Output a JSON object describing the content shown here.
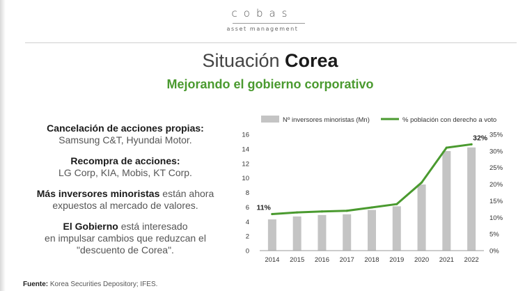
{
  "logo": {
    "name": "cobas",
    "tagline": "asset management"
  },
  "title": {
    "regular": "Situación",
    "bold": "Corea"
  },
  "subtitle": "Mejorando el gobierno corporativo",
  "points": [
    {
      "heading": "Cancelación de acciones propias:",
      "rest": "",
      "detail": "Samsung C&T, Hyundai Motor."
    },
    {
      "heading": "Recompra de acciones:",
      "rest": "",
      "detail": "LG Corp, KIA, Mobis, KT Corp."
    },
    {
      "heading": "Más inversores minoristas",
      "rest": " están ahora",
      "detail": "expuestos al mercado de valores."
    },
    {
      "heading": "El Gobierno",
      "rest": " está interesado",
      "detail": "en impulsar cambios que reduzcan el \"descuento de Corea\"."
    }
  ],
  "source": {
    "label": "Fuente:",
    "text": " Korea Securities Depository; IFES."
  },
  "chart_data": {
    "type": "bar+line",
    "categories": [
      "2014",
      "2015",
      "2016",
      "2017",
      "2018",
      "2019",
      "2020",
      "2021",
      "2022"
    ],
    "series": [
      {
        "name": "Nº inversores minoristas (Mn)",
        "type": "bar",
        "axis": "left",
        "color": "#c4c4c4",
        "values": [
          4.3,
          4.7,
          4.9,
          5.0,
          5.6,
          6.1,
          9.1,
          13.7,
          14.2
        ]
      },
      {
        "name": "% población con derecho a voto",
        "type": "line",
        "axis": "right",
        "color": "#4a9a2f",
        "values": [
          11,
          11.5,
          11.8,
          12,
          13,
          14,
          20.5,
          31,
          32
        ]
      }
    ],
    "y_left": {
      "min": 0,
      "max": 16,
      "ticks": [
        "0",
        "2",
        "4",
        "6",
        "8",
        "10",
        "12",
        "14",
        "16"
      ]
    },
    "y_right": {
      "min": 0,
      "max": 35,
      "ticks": [
        "0%",
        "5%",
        "10%",
        "15%",
        "20%",
        "25%",
        "30%",
        "35%"
      ]
    },
    "annotations": [
      {
        "category": "2014",
        "label": "11%"
      },
      {
        "category": "2022",
        "label": "32%"
      }
    ],
    "legend_position": "top",
    "grid": false
  }
}
